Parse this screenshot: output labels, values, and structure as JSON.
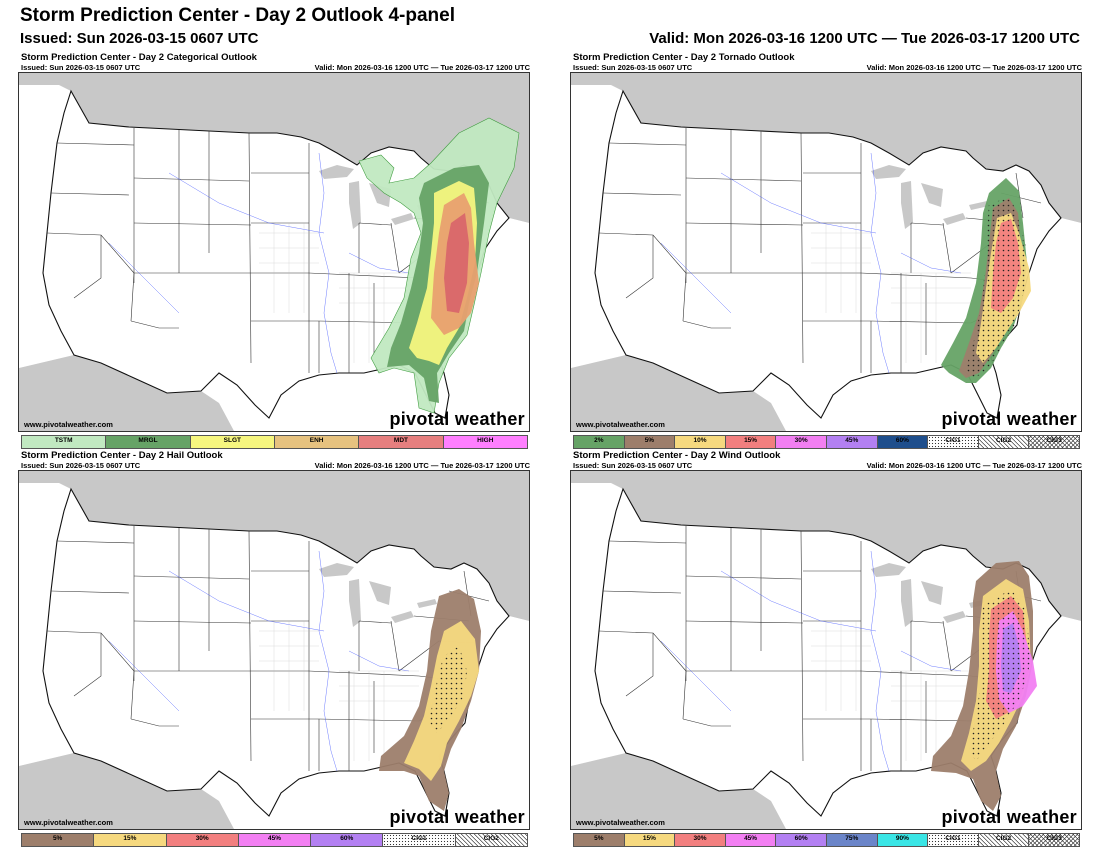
{
  "page": {
    "title": "Storm Prediction Center - Day 2 Outlook 4-panel",
    "issued": "Issued: Sun 2026-03-15 0607 UTC",
    "valid": "Valid: Mon 2026-03-16 1200 UTC — Tue 2026-03-17 1200 UTC"
  },
  "panels": [
    {
      "title": "Storm Prediction Center - Day 2 Categorical Outlook",
      "issued": "Issued: Sun 2026-03-15 0607 UTC",
      "valid": "Valid: Mon 2026-03-16 1200 UTC — Tue 2026-03-17 1200 UTC",
      "website": "www.pivotalweather.com",
      "brand": "pivotal weather",
      "legend": [
        {
          "label": "TSTM",
          "color": "#c1e9c1"
        },
        {
          "label": "MRGL",
          "color": "#66a366"
        },
        {
          "label": "SLGT",
          "color": "#f6f67f"
        },
        {
          "label": "ENH",
          "color": "#e6c27f"
        },
        {
          "label": "MDT",
          "color": "#e67f7f"
        },
        {
          "label": "HIGH",
          "color": "#ff7fff"
        }
      ]
    },
    {
      "title": "Storm Prediction Center - Day 2 Tornado Outlook",
      "issued": "Issued: Sun 2026-03-15 0607 UTC",
      "valid": "Valid: Mon 2026-03-16 1200 UTC — Tue 2026-03-17 1200 UTC",
      "website": "www.pivotalweather.com",
      "brand": "pivotal weather",
      "legend": [
        {
          "label": "2%",
          "color": "#66a366"
        },
        {
          "label": "5%",
          "color": "#9d7e6b"
        },
        {
          "label": "10%",
          "color": "#f6d97f"
        },
        {
          "label": "15%",
          "color": "#f27f7f"
        },
        {
          "label": "30%",
          "color": "#f27ff2"
        },
        {
          "label": "45%",
          "color": "#b380f2"
        },
        {
          "label": "60%",
          "color": "#1e4e8c"
        },
        {
          "label": "CIG1",
          "color": "#ffffff"
        },
        {
          "label": "CIG2",
          "color": "#ffffff"
        },
        {
          "label": "CIG3",
          "color": "#ffffff"
        }
      ]
    },
    {
      "title": "Storm Prediction Center - Day 2 Hail Outlook",
      "issued": "Issued: Sun 2026-03-15 0607 UTC",
      "valid": "Valid: Mon 2026-03-16 1200 UTC — Tue 2026-03-17 1200 UTC",
      "website": "www.pivotalweather.com",
      "brand": "pivotal weather",
      "legend": [
        {
          "label": "5%",
          "color": "#9d7e6b"
        },
        {
          "label": "15%",
          "color": "#f6d97f"
        },
        {
          "label": "30%",
          "color": "#f27f7f"
        },
        {
          "label": "45%",
          "color": "#f27ff2"
        },
        {
          "label": "60%",
          "color": "#b380f2"
        },
        {
          "label": "CIG1",
          "color": "#ffffff"
        },
        {
          "label": "CIG2",
          "color": "#ffffff"
        }
      ]
    },
    {
      "title": "Storm Prediction Center - Day 2 Wind Outlook",
      "issued": "Issued: Sun 2026-03-15 0607 UTC",
      "valid": "Valid: Mon 2026-03-16 1200 UTC — Tue 2026-03-17 1200 UTC",
      "website": "www.pivotalweather.com",
      "brand": "pivotal weather",
      "legend": [
        {
          "label": "5%",
          "color": "#9d7e6b"
        },
        {
          "label": "15%",
          "color": "#f6d97f"
        },
        {
          "label": "30%",
          "color": "#f27f7f"
        },
        {
          "label": "45%",
          "color": "#f27ff2"
        },
        {
          "label": "60%",
          "color": "#b380f2"
        },
        {
          "label": "75%",
          "color": "#6b85c9"
        },
        {
          "label": "90%",
          "color": "#3ae6e6"
        },
        {
          "label": "CIG1",
          "color": "#ffffff"
        },
        {
          "label": "CIG2",
          "color": "#ffffff"
        },
        {
          "label": "CIG3",
          "color": "#ffffff"
        }
      ]
    }
  ]
}
